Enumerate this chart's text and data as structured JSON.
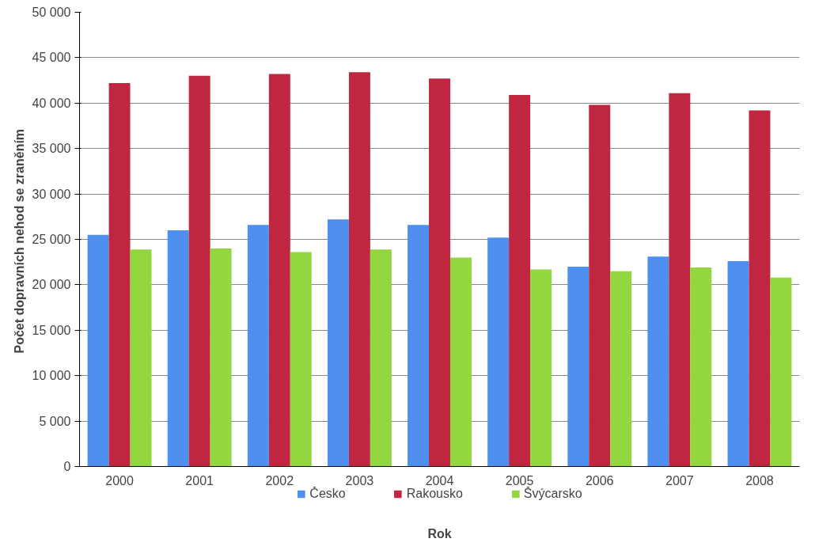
{
  "chart_data": {
    "type": "bar",
    "xlabel": "Rok",
    "ylabel": "Počet dopravních  nehod se zraněním",
    "categories": [
      "2000",
      "2001",
      "2002",
      "2003",
      "2004",
      "2005",
      "2006",
      "2007",
      "2008"
    ],
    "series": [
      {
        "name": "Česko",
        "color": "#4f8fef",
        "values": [
          25500,
          26000,
          26600,
          27200,
          26600,
          25200,
          22000,
          23100,
          22600
        ]
      },
      {
        "name": "Rakousko",
        "color": "#c0263f",
        "values": [
          42200,
          43000,
          43200,
          43400,
          42700,
          40900,
          39800,
          41100,
          39200
        ]
      },
      {
        "name": "Švýcarsko",
        "color": "#92d640",
        "values": [
          23900,
          24000,
          23600,
          23900,
          23000,
          21700,
          21500,
          21900,
          20800
        ]
      }
    ],
    "ylim": [
      0,
      50000
    ],
    "yticks": [
      0,
      {
        "value": 5000,
        "label": "5 000"
      },
      {
        "value": 10000,
        "label": "10 000"
      },
      {
        "value": 15000,
        "label": "15 000"
      },
      {
        "value": 20000,
        "label": "20 000"
      },
      {
        "value": 25000,
        "label": "25 000"
      },
      {
        "value": 30000,
        "label": "30 000"
      },
      {
        "value": 35000,
        "label": "35 000"
      },
      {
        "value": 40000,
        "label": "40 000"
      },
      {
        "value": 45000,
        "label": "45 000"
      },
      {
        "value": 50000,
        "label": "50 000"
      }
    ],
    "grid": "y",
    "legend": "bottom"
  }
}
